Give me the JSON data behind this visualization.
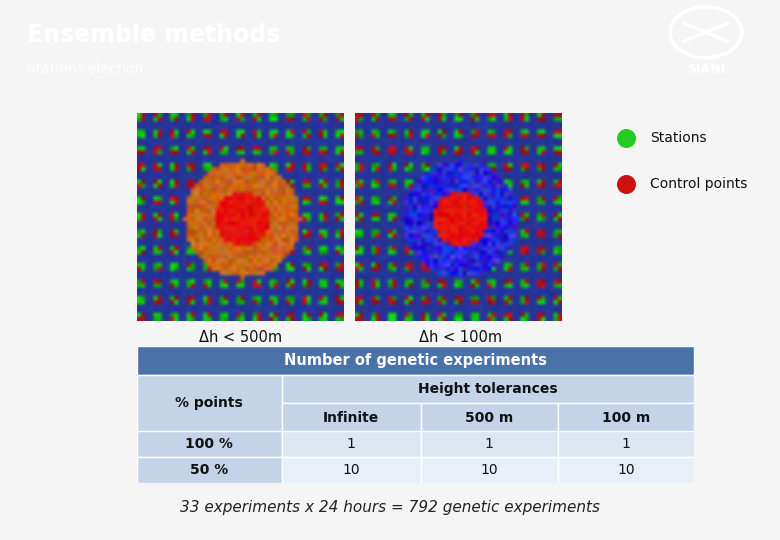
{
  "title": "Ensemble methods",
  "subtitle": "Stations election",
  "header_bg": "#0d2b6b",
  "header_text_color": "#ffffff",
  "body_bg": "#f5f5f5",
  "separator_color": "#4a90c8",
  "legend_items": [
    {
      "label": "Stations",
      "color": "#22cc22"
    },
    {
      "label": "Control points",
      "color": "#cc1111"
    }
  ],
  "img1_label": "Δh < 500m",
  "img2_label": "Δh < 100m",
  "table_header": "Number of genetic experiments",
  "table_header_bg": "#4a72a8",
  "table_header_text": "#ffffff",
  "table_subheader": "Height tolerances",
  "table_subheader_bg": "#c5d3e8",
  "col_header_bg": "#c5d3e8",
  "row_bg_a": "#dce6f1",
  "row_bg_b": "#e8eff8",
  "col_label_bg": "#c5d3e8",
  "columns": [
    "% points",
    "Infinite",
    "500 m",
    "100 m"
  ],
  "rows": [
    [
      "100 %",
      "1",
      "1",
      "1"
    ],
    [
      "50 %",
      "10",
      "10",
      "10"
    ]
  ],
  "footer_text": "33 experiments x 24 hours = 792 genetic experiments",
  "footer_text_color": "#222222"
}
